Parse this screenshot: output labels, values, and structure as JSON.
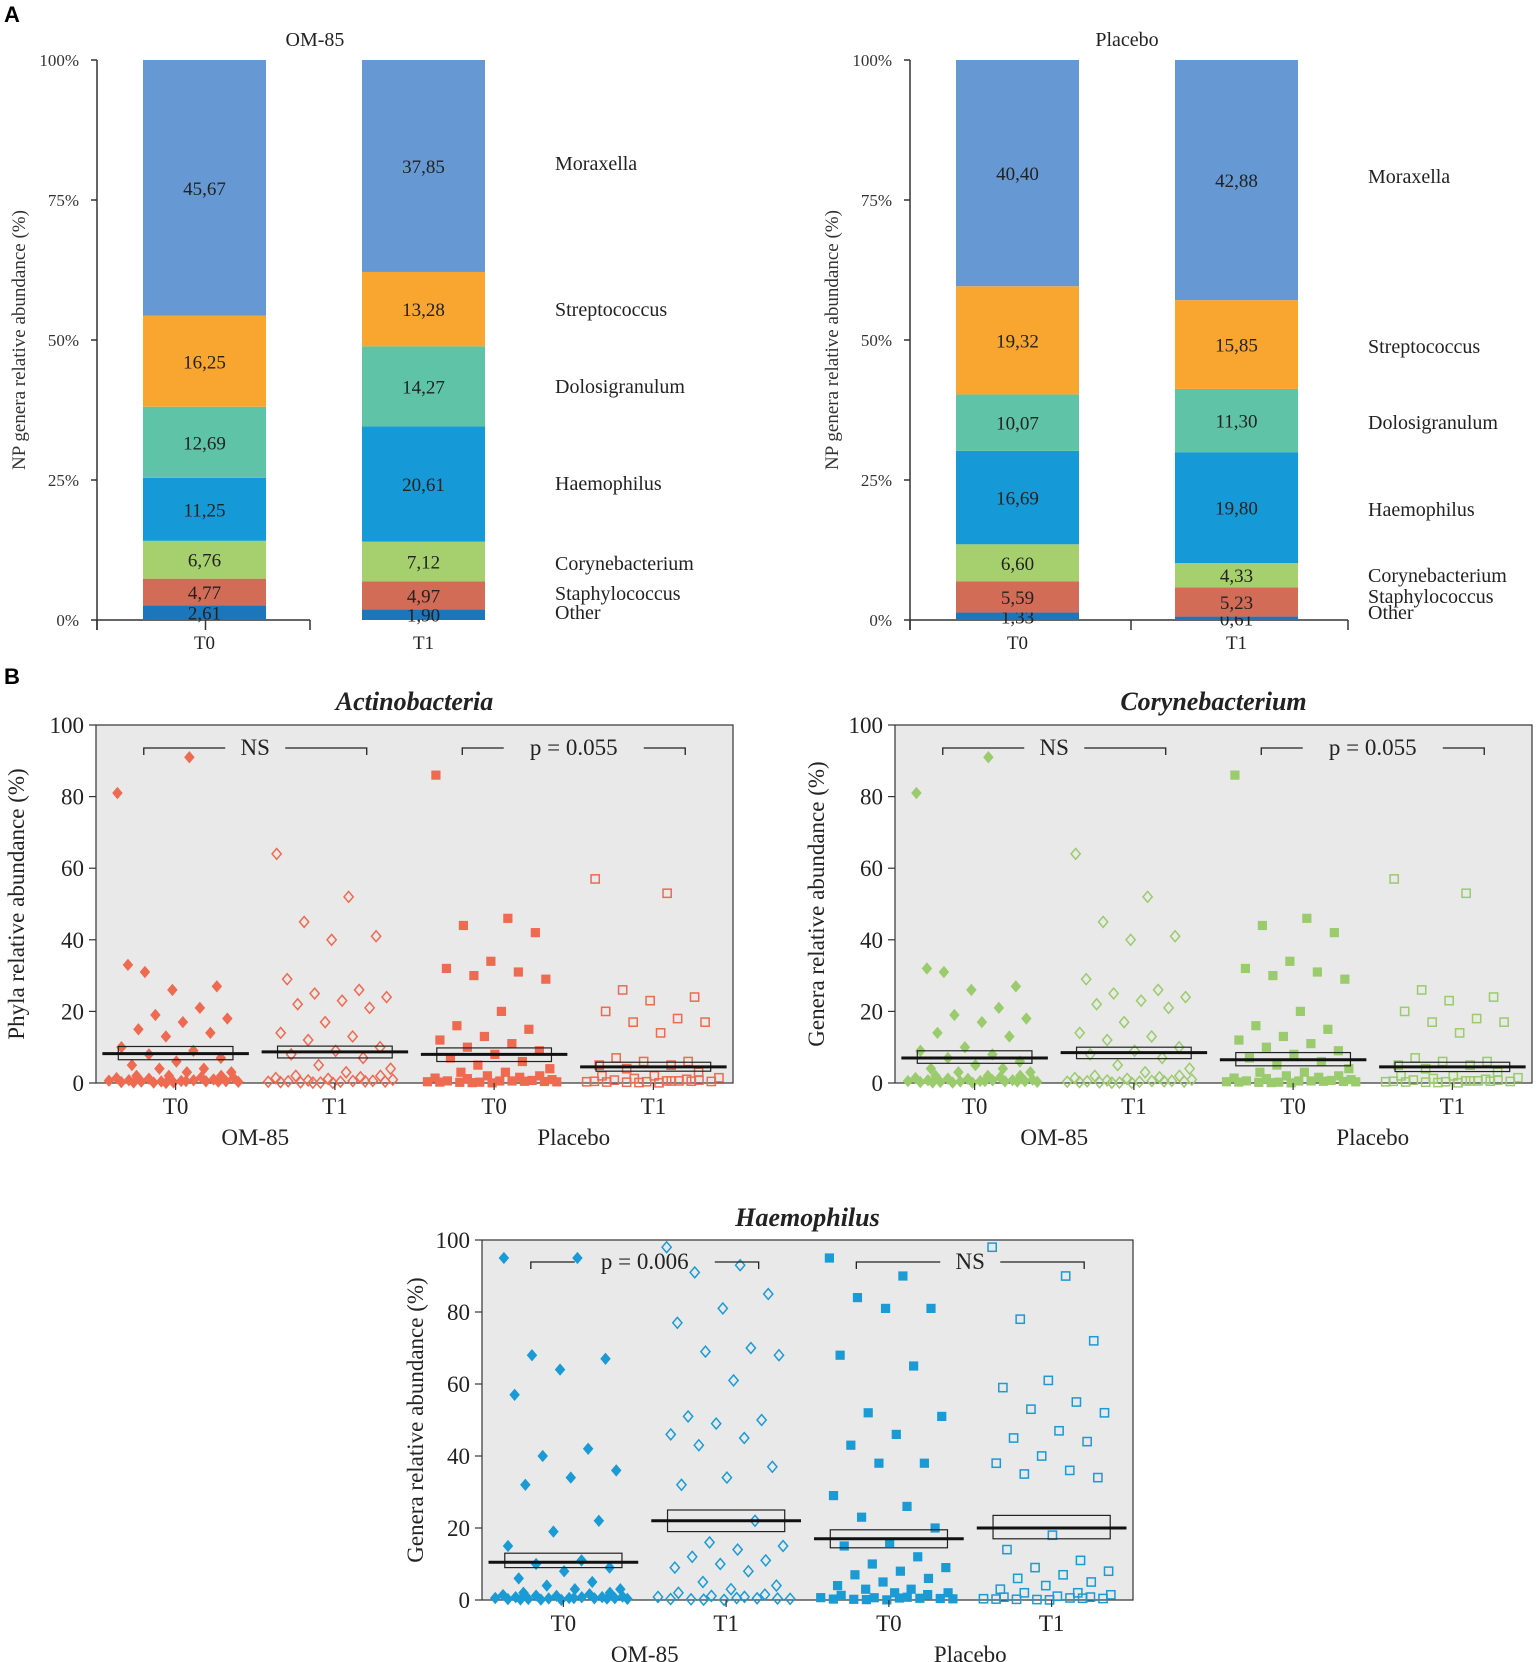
{
  "panel_labels": {
    "a": "A",
    "b": "B"
  },
  "colors": {
    "moraxella": "#6699d4",
    "streptococcus": "#f8a630",
    "dolosigranulum": "#5fc4a7",
    "haemophilus": "#169ad7",
    "corynebacterium": "#a5d06d",
    "staphylococcus": "#d26c56",
    "other": "#1b76bc",
    "actinobacteria_points": "#ee6a50",
    "corynebacterium_points": "#9acb6c",
    "haemophilus_points": "#1a9bd5",
    "scatter_bg": "#e9e9e9"
  },
  "chart_data": [
    {
      "type": "bar",
      "subtype": "stacked-100",
      "title": "OM-85",
      "ylabel": "NP genera relative abundance (%)",
      "yticks": [
        "0%",
        "25%",
        "50%",
        "75%",
        "100%"
      ],
      "categories": [
        "T0",
        "T1"
      ],
      "series": [
        {
          "name": "Other",
          "color_key": "other",
          "values": [
            2.61,
            1.9
          ],
          "labels": [
            "2,61",
            "1,90"
          ]
        },
        {
          "name": "Staphylococcus",
          "color_key": "staphylococcus",
          "values": [
            4.77,
            4.97
          ],
          "labels": [
            "4,77",
            "4,97"
          ]
        },
        {
          "name": "Corynebacterium",
          "color_key": "corynebacterium",
          "values": [
            6.76,
            7.12
          ],
          "labels": [
            "6,76",
            "7,12"
          ]
        },
        {
          "name": "Haemophilus",
          "color_key": "haemophilus",
          "values": [
            11.25,
            20.61
          ],
          "labels": [
            "11,25",
            "20,61"
          ]
        },
        {
          "name": "Dolosigranulum",
          "color_key": "dolosigranulum",
          "values": [
            12.69,
            14.27
          ],
          "labels": [
            "12,69",
            "14,27"
          ]
        },
        {
          "name": "Streptococcus",
          "color_key": "streptococcus",
          "values": [
            16.25,
            13.28
          ],
          "labels": [
            "16,25",
            "13,28"
          ]
        },
        {
          "name": "Moraxella",
          "color_key": "moraxella",
          "values": [
            45.67,
            37.85
          ],
          "labels": [
            "45,67",
            "37,85"
          ]
        }
      ]
    },
    {
      "type": "bar",
      "subtype": "stacked-100",
      "title": "Placebo",
      "ylabel": "NP genera relative abundance (%)",
      "yticks": [
        "0%",
        "25%",
        "50%",
        "75%",
        "100%"
      ],
      "categories": [
        "T0",
        "T1"
      ],
      "series": [
        {
          "name": "Other",
          "color_key": "other",
          "values": [
            1.33,
            0.61
          ],
          "labels": [
            "1,33",
            "0,61"
          ]
        },
        {
          "name": "Staphylococcus",
          "color_key": "staphylococcus",
          "values": [
            5.59,
            5.23
          ],
          "labels": [
            "5,59",
            "5,23"
          ]
        },
        {
          "name": "Corynebacterium",
          "color_key": "corynebacterium",
          "values": [
            6.6,
            4.33
          ],
          "labels": [
            "6,60",
            "4,33"
          ]
        },
        {
          "name": "Haemophilus",
          "color_key": "haemophilus",
          "values": [
            16.69,
            19.8
          ],
          "labels": [
            "16,69",
            "19,80"
          ]
        },
        {
          "name": "Dolosigranulum",
          "color_key": "dolosigranulum",
          "values": [
            10.07,
            11.3
          ],
          "labels": [
            "10,07",
            "11,30"
          ]
        },
        {
          "name": "Streptococcus",
          "color_key": "streptococcus",
          "values": [
            19.32,
            15.85
          ],
          "labels": [
            "19,32",
            "15,85"
          ]
        },
        {
          "name": "Moraxella",
          "color_key": "moraxella",
          "values": [
            40.4,
            42.88
          ],
          "labels": [
            "40,40",
            "42,88"
          ]
        }
      ]
    },
    {
      "type": "scatter",
      "title": "Actinobacteria",
      "ylabel": "Phyla relative abundance (%)",
      "ylim": [
        0,
        100
      ],
      "yticks": [
        0,
        20,
        40,
        60,
        80,
        100
      ],
      "color_key": "actinobacteria_points",
      "groups": [
        {
          "label": "T0",
          "study_group": "OM-85",
          "marker": "diamond",
          "filled": true,
          "median": 8.2,
          "box": [
            6.5,
            10.2
          ],
          "values": [
            81,
            91,
            31,
            27,
            26,
            33,
            21,
            19,
            18,
            17,
            15,
            14,
            13,
            10,
            9,
            8,
            7,
            6,
            5,
            4,
            4,
            3,
            3,
            2,
            2,
            2,
            1,
            1,
            1,
            1,
            0.5,
            0.5,
            0.5,
            0.3,
            0.3,
            0.2,
            0.2,
            0.1,
            0.1,
            0,
            0,
            0,
            0,
            0,
            0,
            0,
            0
          ]
        },
        {
          "label": "T1",
          "study_group": "OM-85",
          "marker": "diamond",
          "filled": false,
          "median": 8.7,
          "box": [
            7.0,
            10.3
          ],
          "values": [
            64,
            52,
            45,
            41,
            40,
            29,
            26,
            25,
            24,
            23,
            22,
            21,
            17,
            14,
            13,
            12,
            10,
            9,
            8,
            7,
            5,
            4,
            3,
            2,
            2,
            1,
            1,
            1,
            0.5,
            0.5,
            0.3,
            0.2,
            0.1,
            0,
            0,
            0,
            0,
            0,
            0,
            0,
            0,
            0
          ]
        },
        {
          "label": "T0",
          "study_group": "Placebo",
          "marker": "square",
          "filled": true,
          "median": 8.0,
          "box": [
            6.0,
            9.8
          ],
          "values": [
            86,
            46,
            44,
            42,
            34,
            32,
            31,
            30,
            29,
            20,
            16,
            15,
            13,
            12,
            11,
            10,
            9,
            8,
            7,
            6,
            5,
            4,
            3,
            3,
            2,
            2,
            1,
            1,
            1,
            0.5,
            0.5,
            0.3,
            0.2,
            0.1,
            0,
            0,
            0,
            0,
            0,
            0,
            0,
            0,
            0
          ]
        },
        {
          "label": "T1",
          "study_group": "Placebo",
          "marker": "square",
          "filled": false,
          "median": 4.5,
          "box": [
            3.3,
            5.8
          ],
          "values": [
            57,
            53,
            26,
            24,
            23,
            20,
            18,
            17,
            17,
            14,
            7,
            6,
            6,
            5,
            5,
            4,
            3,
            2,
            2,
            1,
            1,
            1,
            0.5,
            0.5,
            0.3,
            0.2,
            0.1,
            0,
            0,
            0,
            0,
            0,
            0,
            0,
            0,
            0
          ]
        }
      ],
      "brackets": [
        {
          "text": "NS"
        },
        {
          "text": "p = 0.055"
        }
      ],
      "group_labels": [
        "OM-85",
        "Placebo"
      ]
    },
    {
      "type": "scatter",
      "title": "Corynebacterium",
      "ylabel": "Genera relative abundance (%)",
      "ylim": [
        0,
        100
      ],
      "yticks": [
        0,
        20,
        40,
        60,
        80,
        100
      ],
      "color_key": "corynebacterium_points",
      "groups": [
        {
          "label": "T0",
          "study_group": "OM-85",
          "marker": "diamond",
          "filled": true,
          "median": 7.0,
          "box": [
            5.5,
            9.0
          ],
          "values": [
            81,
            91,
            31,
            27,
            26,
            32,
            21,
            19,
            18,
            17,
            14,
            13,
            10,
            9,
            8,
            7,
            6,
            5,
            4,
            4,
            3,
            3,
            2,
            2,
            2,
            1,
            1,
            1,
            1,
            0.5,
            0.5,
            0.5,
            0.3,
            0.3,
            0.2,
            0.2,
            0.1,
            0.1,
            0,
            0,
            0,
            0,
            0,
            0,
            0,
            0
          ]
        },
        {
          "label": "T1",
          "study_group": "OM-85",
          "marker": "diamond",
          "filled": false,
          "median": 8.5,
          "box": [
            6.8,
            10.0
          ],
          "values": [
            64,
            52,
            45,
            41,
            40,
            29,
            26,
            25,
            24,
            23,
            22,
            21,
            17,
            14,
            13,
            12,
            10,
            9,
            8,
            7,
            5,
            4,
            3,
            2,
            2,
            1,
            1,
            1,
            0.5,
            0.5,
            0.3,
            0.2,
            0.1,
            0,
            0,
            0,
            0,
            0,
            0,
            0,
            0,
            0
          ]
        },
        {
          "label": "T0",
          "study_group": "Placebo",
          "marker": "square",
          "filled": true,
          "median": 6.5,
          "box": [
            4.8,
            8.5
          ],
          "values": [
            86,
            46,
            44,
            42,
            34,
            32,
            31,
            30,
            29,
            20,
            16,
            15,
            13,
            12,
            11,
            10,
            9,
            8,
            7,
            6,
            5,
            4,
            3,
            3,
            2,
            2,
            1,
            1,
            1,
            0.5,
            0.5,
            0.3,
            0.2,
            0.1,
            0,
            0,
            0,
            0,
            0,
            0,
            0,
            0,
            0
          ]
        },
        {
          "label": "T1",
          "study_group": "Placebo",
          "marker": "square",
          "filled": false,
          "median": 4.5,
          "box": [
            3.2,
            5.8
          ],
          "values": [
            57,
            53,
            26,
            24,
            23,
            20,
            18,
            17,
            17,
            14,
            7,
            6,
            6,
            5,
            5,
            4,
            3,
            2,
            2,
            1,
            1,
            1,
            0.5,
            0.5,
            0.3,
            0.2,
            0.1,
            0,
            0,
            0,
            0,
            0,
            0,
            0,
            0,
            0
          ]
        }
      ],
      "brackets": [
        {
          "text": "NS"
        },
        {
          "text": "p = 0.055"
        }
      ],
      "group_labels": [
        "OM-85",
        "Placebo"
      ]
    },
    {
      "type": "scatter",
      "title": "Haemophilus",
      "ylabel": "Genera relative abundance (%)",
      "ylim": [
        0,
        100
      ],
      "yticks": [
        0,
        20,
        40,
        60,
        80,
        100
      ],
      "color_key": "haemophilus_points",
      "groups": [
        {
          "label": "T0",
          "study_group": "OM-85",
          "marker": "diamond",
          "filled": true,
          "median": 10.5,
          "box": [
            9.0,
            13.0
          ],
          "values": [
            95,
            95,
            68,
            67,
            64,
            57,
            42,
            40,
            36,
            34,
            32,
            22,
            19,
            15,
            11,
            10,
            9,
            8,
            6,
            5,
            4,
            3,
            3,
            2,
            2,
            1,
            1,
            1,
            1,
            0.5,
            0.5,
            0.5,
            0.3,
            0.3,
            0.2,
            0.2,
            0.1,
            0.1,
            0,
            0,
            0,
            0,
            0,
            0,
            0,
            0
          ]
        },
        {
          "label": "T1",
          "study_group": "OM-85",
          "marker": "diamond",
          "filled": false,
          "median": 22.0,
          "box": [
            19.0,
            25.0
          ],
          "values": [
            98,
            93,
            91,
            85,
            81,
            77,
            70,
            69,
            68,
            61,
            51,
            50,
            49,
            46,
            45,
            43,
            37,
            34,
            32,
            22,
            16,
            15,
            14,
            12,
            11,
            10,
            9,
            8,
            5,
            4,
            3,
            2,
            1,
            1,
            0.5,
            0.3,
            0,
            0,
            0,
            0,
            0,
            0,
            0,
            0
          ]
        },
        {
          "label": "T0",
          "study_group": "Placebo",
          "marker": "square",
          "filled": true,
          "median": 17.0,
          "box": [
            14.5,
            19.5
          ],
          "values": [
            95,
            90,
            84,
            81,
            81,
            68,
            65,
            52,
            51,
            46,
            43,
            38,
            38,
            29,
            26,
            23,
            20,
            16,
            15,
            12,
            10,
            9,
            8,
            7,
            6,
            5,
            4,
            3,
            3,
            2,
            2,
            1,
            1,
            0.5,
            0.3,
            0.2,
            0,
            0,
            0,
            0,
            0,
            0,
            0,
            0
          ]
        },
        {
          "label": "T1",
          "study_group": "Placebo",
          "marker": "square",
          "filled": false,
          "median": 20.0,
          "box": [
            17.0,
            23.5
          ],
          "values": [
            98,
            90,
            78,
            72,
            61,
            59,
            55,
            53,
            52,
            47,
            45,
            44,
            40,
            38,
            36,
            35,
            34,
            18,
            14,
            11,
            9,
            8,
            7,
            6,
            5,
            4,
            3,
            2,
            2,
            1,
            1,
            0.5,
            0.3,
            0,
            0,
            0,
            0,
            0,
            0,
            0,
            0
          ]
        }
      ],
      "brackets": [
        {
          "text": "p = 0.006"
        },
        {
          "text": "NS"
        }
      ],
      "group_labels": [
        "OM-85",
        "Placebo"
      ]
    }
  ]
}
